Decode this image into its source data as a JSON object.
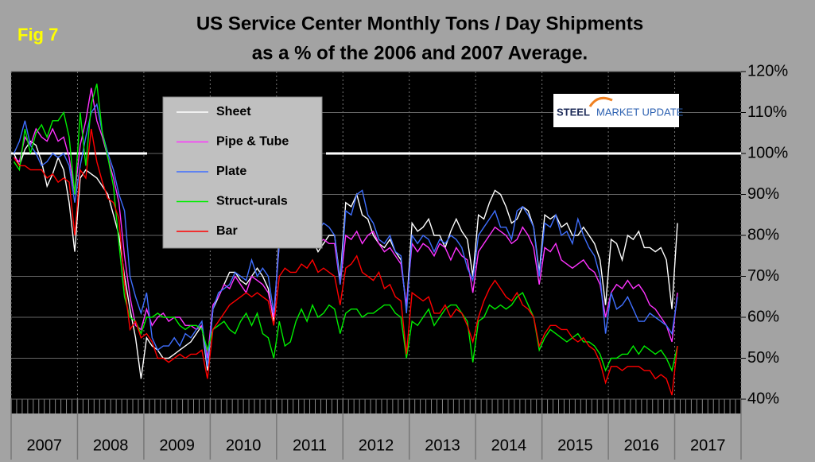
{
  "chart_data": {
    "type": "line",
    "fig_label": "Fig 7",
    "title": [
      "US Service Center Monthly Tons / Day Shipments",
      "as a % of the 2006 and 2007 Average."
    ],
    "logo": [
      "STEEL",
      "MARKET UPDATE"
    ],
    "categories": [
      null,
      null,
      null,
      null,
      null,
      null,
      "2007",
      null,
      null,
      null,
      null,
      null,
      null,
      null,
      null,
      null,
      null,
      null,
      "2008",
      null,
      null,
      null,
      null,
      null,
      null,
      null,
      null,
      null,
      null,
      null,
      "2009",
      null,
      null,
      null,
      null,
      null,
      null,
      null,
      null,
      null,
      null,
      null,
      "2010",
      null,
      null,
      null,
      null,
      null,
      null,
      null,
      null,
      null,
      null,
      null,
      "2011",
      null,
      null,
      null,
      null,
      null,
      null,
      null,
      null,
      null,
      null,
      null,
      "2012",
      null,
      null,
      null,
      null,
      null,
      null,
      null,
      null,
      null,
      null,
      null,
      "2013",
      null,
      null,
      null,
      null,
      null,
      null,
      null,
      null,
      null,
      null,
      null,
      "2014",
      null,
      null,
      null,
      null,
      null,
      null,
      null,
      null,
      null,
      null,
      null,
      "2015",
      null,
      null,
      null,
      null,
      null,
      null,
      null,
      null,
      null,
      null,
      null,
      "2016",
      null,
      null,
      null,
      null,
      null,
      null,
      null,
      null,
      null,
      null,
      null,
      "2017",
      null,
      null,
      null,
      null,
      null
    ],
    "series": [
      {
        "name": "Sheet",
        "color": "#ffffff",
        "values": [
          100,
          97,
          101,
          103,
          102,
          98,
          92,
          95,
          99,
          96,
          88,
          76,
          94,
          96,
          95,
          94,
          92,
          90,
          85,
          80,
          70,
          62,
          55,
          45,
          55,
          53,
          52,
          50,
          50,
          51,
          52,
          53,
          54,
          56,
          58,
          47,
          62,
          65,
          68,
          71,
          71,
          69,
          68,
          70,
          72,
          70,
          67,
          59,
          80,
          78,
          79,
          77,
          79,
          81,
          79,
          76,
          78,
          80,
          80,
          69,
          88,
          87,
          90,
          85,
          84,
          80,
          78,
          77,
          79,
          76,
          74,
          62,
          83,
          81,
          82,
          84,
          80,
          80,
          77,
          81,
          84,
          81,
          79,
          70,
          85,
          84,
          88,
          91,
          90,
          87,
          83,
          84,
          87,
          86,
          82,
          71,
          85,
          84,
          85,
          82,
          83,
          80,
          80,
          82,
          80,
          78,
          74,
          63,
          79,
          78,
          74,
          80,
          79,
          81,
          77,
          77,
          76,
          77,
          74,
          62,
          83,
          null,
          null,
          null,
          null,
          null,
          null,
          null,
          null,
          null,
          null,
          null
        ]
      },
      {
        "name": "Pipe & Tube",
        "color": "#ff33ff",
        "values": [
          99,
          98,
          104,
          102,
          106,
          104,
          103,
          106,
          103,
          104,
          99,
          90,
          102,
          108,
          116,
          108,
          104,
          99,
          94,
          88,
          75,
          65,
          58,
          57,
          62,
          58,
          60,
          61,
          59,
          60,
          60,
          58,
          58,
          57,
          58,
          50,
          63,
          65,
          68,
          67,
          70,
          68,
          66,
          70,
          69,
          68,
          66,
          60,
          78,
          79,
          80,
          78,
          77,
          79,
          82,
          78,
          79,
          78,
          78,
          68,
          80,
          79,
          81,
          78,
          80,
          81,
          78,
          76,
          77,
          75,
          73,
          63,
          78,
          76,
          78,
          77,
          75,
          78,
          77,
          74,
          77,
          75,
          74,
          66,
          76,
          78,
          80,
          82,
          81,
          80,
          78,
          79,
          82,
          80,
          77,
          68,
          77,
          76,
          78,
          74,
          73,
          72,
          73,
          74,
          72,
          71,
          68,
          60,
          66,
          68,
          67,
          69,
          67,
          68,
          66,
          63,
          62,
          60,
          58,
          54,
          66,
          null,
          null,
          null,
          null,
          null,
          null,
          null,
          null,
          null,
          null,
          null
        ]
      },
      {
        "name": "Plate",
        "color": "#3f6fff",
        "values": [
          100,
          103,
          108,
          102,
          100,
          97,
          98,
          100,
          99,
          100,
          97,
          88,
          97,
          104,
          110,
          112,
          105,
          100,
          96,
          90,
          86,
          70,
          65,
          61,
          66,
          55,
          52,
          53,
          53,
          55,
          53,
          56,
          55,
          57,
          59,
          48,
          62,
          66,
          67,
          68,
          71,
          70,
          69,
          74,
          70,
          72,
          70,
          61,
          78,
          80,
          82,
          78,
          78,
          80,
          82,
          81,
          83,
          82,
          80,
          68,
          86,
          85,
          90,
          91,
          85,
          83,
          79,
          78,
          80,
          76,
          75,
          61,
          80,
          78,
          80,
          79,
          76,
          79,
          78,
          80,
          79,
          77,
          72,
          69,
          80,
          82,
          84,
          86,
          82,
          82,
          79,
          86,
          87,
          85,
          82,
          70,
          83,
          82,
          85,
          80,
          81,
          78,
          84,
          80,
          77,
          75,
          70,
          56,
          66,
          62,
          63,
          65,
          62,
          59,
          59,
          61,
          60,
          59,
          58,
          56,
          65,
          null,
          null,
          null,
          null,
          null,
          null,
          null,
          null,
          null,
          null,
          null
        ]
      },
      {
        "name": "Struct-urals",
        "color": "#00ee00",
        "values": [
          98,
          96,
          106,
          100,
          105,
          107,
          104,
          108,
          108,
          110,
          104,
          90,
          110,
          97,
          112,
          117,
          105,
          99,
          92,
          78,
          65,
          60,
          59,
          56,
          60,
          60,
          61,
          60,
          60,
          60,
          58,
          57,
          58,
          58,
          57,
          52,
          57,
          58,
          59,
          57,
          56,
          59,
          61,
          58,
          61,
          56,
          55,
          50,
          59,
          53,
          54,
          59,
          62,
          59,
          63,
          60,
          61,
          63,
          62,
          56,
          61,
          62,
          62,
          60,
          61,
          61,
          62,
          63,
          63,
          61,
          60,
          50,
          59,
          58,
          60,
          62,
          58,
          60,
          62,
          63,
          63,
          61,
          59,
          49,
          59,
          60,
          63,
          62,
          63,
          62,
          63,
          65,
          66,
          63,
          60,
          52,
          55,
          57,
          56,
          55,
          54,
          55,
          56,
          54,
          54,
          53,
          51,
          47,
          50,
          50,
          51,
          51,
          53,
          51,
          53,
          52,
          51,
          52,
          50,
          47,
          53,
          null,
          null,
          null,
          null,
          null,
          null,
          null,
          null,
          null,
          null,
          null
        ]
      },
      {
        "name": "Bar",
        "color": "#ff0000",
        "values": [
          99,
          97,
          97,
          96,
          96,
          96,
          94,
          95,
          93,
          94,
          93,
          80,
          96,
          94,
          106,
          98,
          93,
          89,
          88,
          84,
          68,
          57,
          59,
          55,
          56,
          54,
          50,
          50,
          49,
          50,
          51,
          50,
          51,
          51,
          52,
          45,
          57,
          59,
          61,
          63,
          64,
          65,
          66,
          65,
          66,
          65,
          64,
          58,
          70,
          72,
          71,
          71,
          73,
          72,
          74,
          71,
          72,
          71,
          70,
          63,
          72,
          73,
          75,
          71,
          70,
          69,
          71,
          67,
          68,
          65,
          64,
          51,
          66,
          65,
          64,
          65,
          61,
          61,
          63,
          60,
          62,
          61,
          58,
          54,
          60,
          64,
          67,
          69,
          67,
          65,
          64,
          66,
          63,
          62,
          60,
          53,
          56,
          58,
          58,
          57,
          57,
          55,
          54,
          55,
          53,
          52,
          49,
          44,
          48,
          48,
          47,
          48,
          48,
          48,
          47,
          47,
          45,
          46,
          45,
          41,
          53,
          null,
          null,
          null,
          null,
          null,
          null,
          null,
          null,
          null,
          null,
          null
        ]
      }
    ],
    "reference_line": 100,
    "ylim": [
      40,
      120
    ],
    "yticks": [
      {
        "value": 40,
        "label": "40%"
      },
      {
        "value": 50,
        "label": "50%"
      },
      {
        "value": 60,
        "label": "60%"
      },
      {
        "value": 70,
        "label": "70%"
      },
      {
        "value": 80,
        "label": "80%"
      },
      {
        "value": 90,
        "label": "90%"
      },
      {
        "value": 100,
        "label": "100%"
      },
      {
        "value": 110,
        "label": "110%"
      },
      {
        "value": 120,
        "label": "120%"
      }
    ],
    "grid": true
  }
}
